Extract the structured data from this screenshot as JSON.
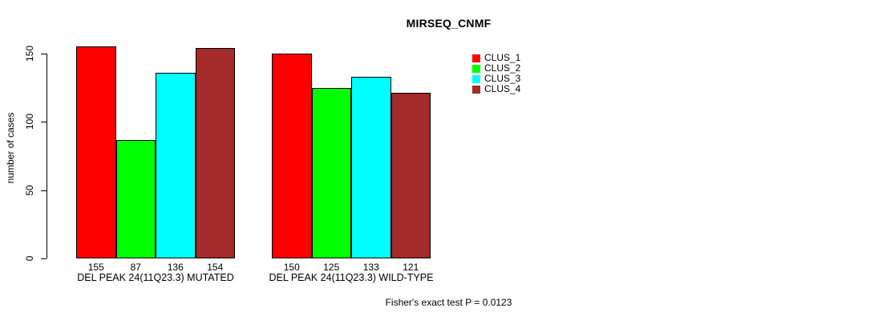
{
  "chart_data": {
    "type": "bar",
    "title": "MIRSEQ_CNMF",
    "xlabel": "",
    "ylabel": "number of cases",
    "ylim": [
      0,
      150
    ],
    "yticks": [
      0,
      50,
      100,
      150
    ],
    "grid": false,
    "legend_position": "top-right-inside",
    "categories": [
      "DEL PEAK 24(11Q23.3) MUTATED",
      "DEL PEAK 24(11Q23.3) WILD-TYPE"
    ],
    "series": [
      {
        "name": "CLUS_1",
        "color": "#FF0000",
        "values": [
          155,
          150
        ]
      },
      {
        "name": "CLUS_2",
        "color": "#00FF00",
        "values": [
          87,
          125
        ]
      },
      {
        "name": "CLUS_3",
        "color": "#00FFFF",
        "values": [
          136,
          133
        ]
      },
      {
        "name": "CLUS_4",
        "color": "#A52A2A",
        "values": [
          154,
          121
        ]
      }
    ],
    "bar_value_labels_shown": true,
    "annotation": "Fisher's exact test P = 0.0123"
  }
}
